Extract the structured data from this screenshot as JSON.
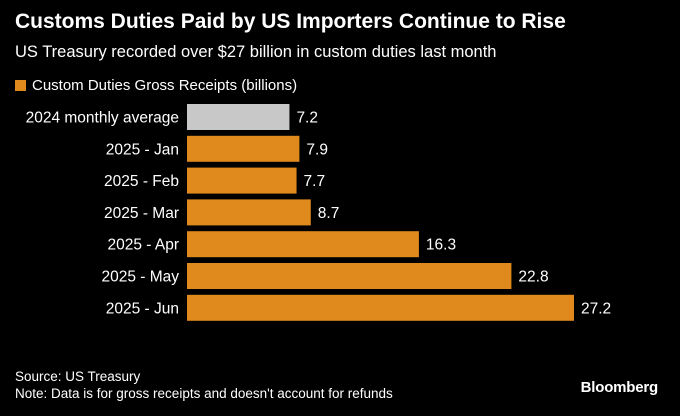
{
  "header": {
    "title": "Customs Duties Paid by US Importers Continue to Rise",
    "subtitle": "US Treasury recorded over $27 billion in custom duties last month"
  },
  "legend": {
    "label": "Custom Duties Gross Receipts (billions)",
    "color": "#e08a1e"
  },
  "footer": {
    "source": "Source: US Treasury",
    "note": "Note: Data is for gross receipts and doesn't account for refunds",
    "brand": "Bloomberg"
  },
  "colors": {
    "background": "#000000",
    "bar_primary": "#e08a1e",
    "bar_reference": "#c8c8c8",
    "text": "#ffffff"
  },
  "chart_data": {
    "type": "bar",
    "orientation": "horizontal",
    "title": "Customs Duties Paid by US Importers Continue to Rise",
    "subtitle": "US Treasury recorded over $27 billion in custom duties last month",
    "categories": [
      "2024 monthly average",
      "2025 - Jan",
      "2025 - Feb",
      "2025 - Mar",
      "2025 - Apr",
      "2025 - May",
      "2025 - Jun"
    ],
    "series": [
      {
        "name": "Custom Duties Gross Receipts (billions)",
        "values": [
          7.2,
          7.9,
          7.7,
          8.7,
          16.3,
          22.8,
          27.2
        ]
      }
    ],
    "value_labels": [
      "7.2",
      "7.9",
      "7.7",
      "8.7",
      "16.3",
      "22.8",
      "27.2"
    ],
    "bar_colors": [
      "#c8c8c8",
      "#e08a1e",
      "#e08a1e",
      "#e08a1e",
      "#e08a1e",
      "#e08a1e",
      "#e08a1e"
    ],
    "xlim": [
      0,
      27.2
    ],
    "grid": false,
    "legend_position": "top-left",
    "xlabel": "",
    "ylabel": ""
  }
}
